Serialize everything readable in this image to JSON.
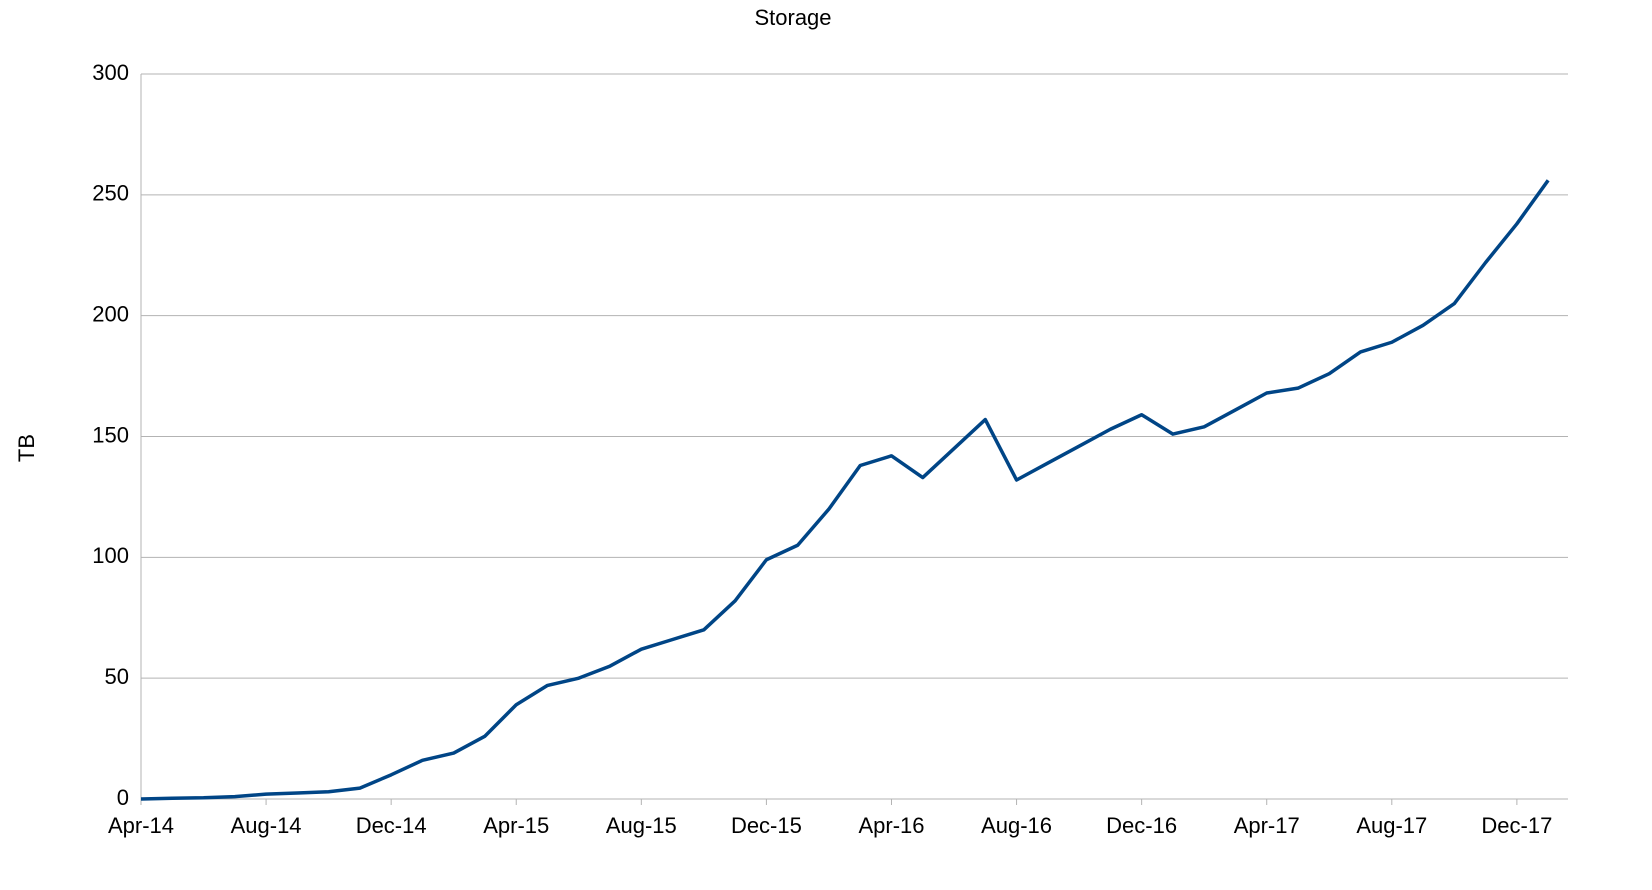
{
  "chart_data": {
    "type": "line",
    "title": "Storage",
    "y_label": "TB",
    "x": [
      "Apr-14",
      "May-14",
      "Jun-14",
      "Jul-14",
      "Aug-14",
      "Sep-14",
      "Oct-14",
      "Nov-14",
      "Dec-14",
      "Jan-15",
      "Feb-15",
      "Mar-15",
      "Apr-15",
      "May-15",
      "Jun-15",
      "Jul-15",
      "Aug-15",
      "Sep-15",
      "Oct-15",
      "Nov-15",
      "Dec-15",
      "Jan-16",
      "Feb-16",
      "Mar-16",
      "Apr-16",
      "May-16",
      "Jun-16",
      "Jul-16",
      "Aug-16",
      "Sep-16",
      "Oct-16",
      "Nov-16",
      "Dec-16",
      "Jan-17",
      "Feb-17",
      "Mar-17",
      "Apr-17",
      "May-17",
      "Jun-17",
      "Jul-17",
      "Aug-17",
      "Sep-17",
      "Oct-17",
      "Nov-17",
      "Dec-17",
      "Jan-18"
    ],
    "series": [
      {
        "name": "Storage",
        "color": "#004586",
        "values": [
          0,
          0.3,
          0.5,
          1,
          2,
          2.5,
          3,
          4.5,
          10,
          16,
          19,
          26,
          39,
          47,
          50,
          55,
          62,
          66,
          70,
          82,
          99,
          105,
          120,
          138,
          142,
          133,
          145,
          157,
          132,
          139,
          146,
          153,
          159,
          151,
          154,
          161,
          168,
          170,
          176,
          185,
          189,
          196,
          205,
          222,
          238,
          256
        ]
      }
    ],
    "xticks": [
      "Apr-14",
      "Aug-14",
      "Dec-14",
      "Apr-15",
      "Aug-15",
      "Dec-15",
      "Apr-16",
      "Aug-16",
      "Dec-16",
      "Apr-17",
      "Aug-17",
      "Dec-17"
    ],
    "ylim": [
      0,
      300
    ],
    "yticks": [
      0,
      50,
      100,
      150,
      200,
      250,
      300
    ],
    "grid": true
  }
}
